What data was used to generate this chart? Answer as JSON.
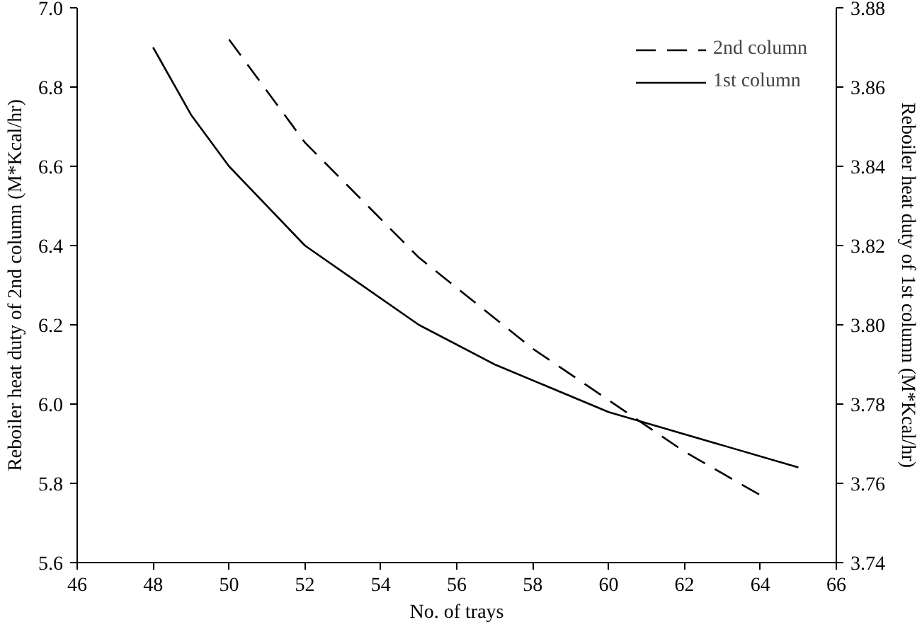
{
  "chart_data": {
    "type": "line",
    "xlabel": "No. of trays",
    "ylabel": "Reboiler heat duty of 2nd column (M*Kcal/hr)",
    "y2label": "Reboiler heat duty of 1st column (M*Kcal/hr)",
    "xlim": [
      46,
      66
    ],
    "xticks": [
      46,
      48,
      50,
      52,
      54,
      56,
      58,
      60,
      62,
      64,
      66
    ],
    "ylim": [
      5.6,
      7.0
    ],
    "yticks": [
      {
        "value": 5.6,
        "label": "5.6"
      },
      {
        "value": 5.8,
        "label": "5.8"
      },
      {
        "value": 6.0,
        "label": "6.0"
      },
      {
        "value": 6.2,
        "label": "6.2"
      },
      {
        "value": 6.4,
        "label": "6.4"
      },
      {
        "value": 6.6,
        "label": "6.6"
      },
      {
        "value": 6.8,
        "label": "6.8"
      },
      {
        "value": 7.0,
        "label": "7.0"
      }
    ],
    "y2lim": [
      3.74,
      3.88
    ],
    "y2ticks": [
      {
        "value": 3.74,
        "label": "3.74"
      },
      {
        "value": 3.76,
        "label": "3.76"
      },
      {
        "value": 3.78,
        "label": "3.78"
      },
      {
        "value": 3.8,
        "label": "3.80"
      },
      {
        "value": 3.82,
        "label": "3.82"
      },
      {
        "value": 3.84,
        "label": "3.84"
      },
      {
        "value": 3.86,
        "label": "3.86"
      },
      {
        "value": 3.88,
        "label": "3.88"
      }
    ],
    "legend": "top right",
    "grid": false,
    "series": [
      {
        "name": "2nd column",
        "color": "#000000",
        "line_style": "dashed",
        "x": [
          50,
          52,
          55,
          58,
          60,
          62,
          64
        ],
        "values": [
          6.92,
          6.66,
          6.37,
          6.14,
          6.01,
          5.88,
          5.77
        ]
      },
      {
        "name": "1st column",
        "color": "#000000",
        "line_style": "solid",
        "axis": "y2",
        "x": [
          48,
          49,
          50,
          52,
          55,
          57,
          60,
          65
        ],
        "values": [
          3.87,
          3.853,
          3.84,
          3.82,
          3.8,
          3.79,
          3.778,
          3.764
        ]
      }
    ]
  }
}
